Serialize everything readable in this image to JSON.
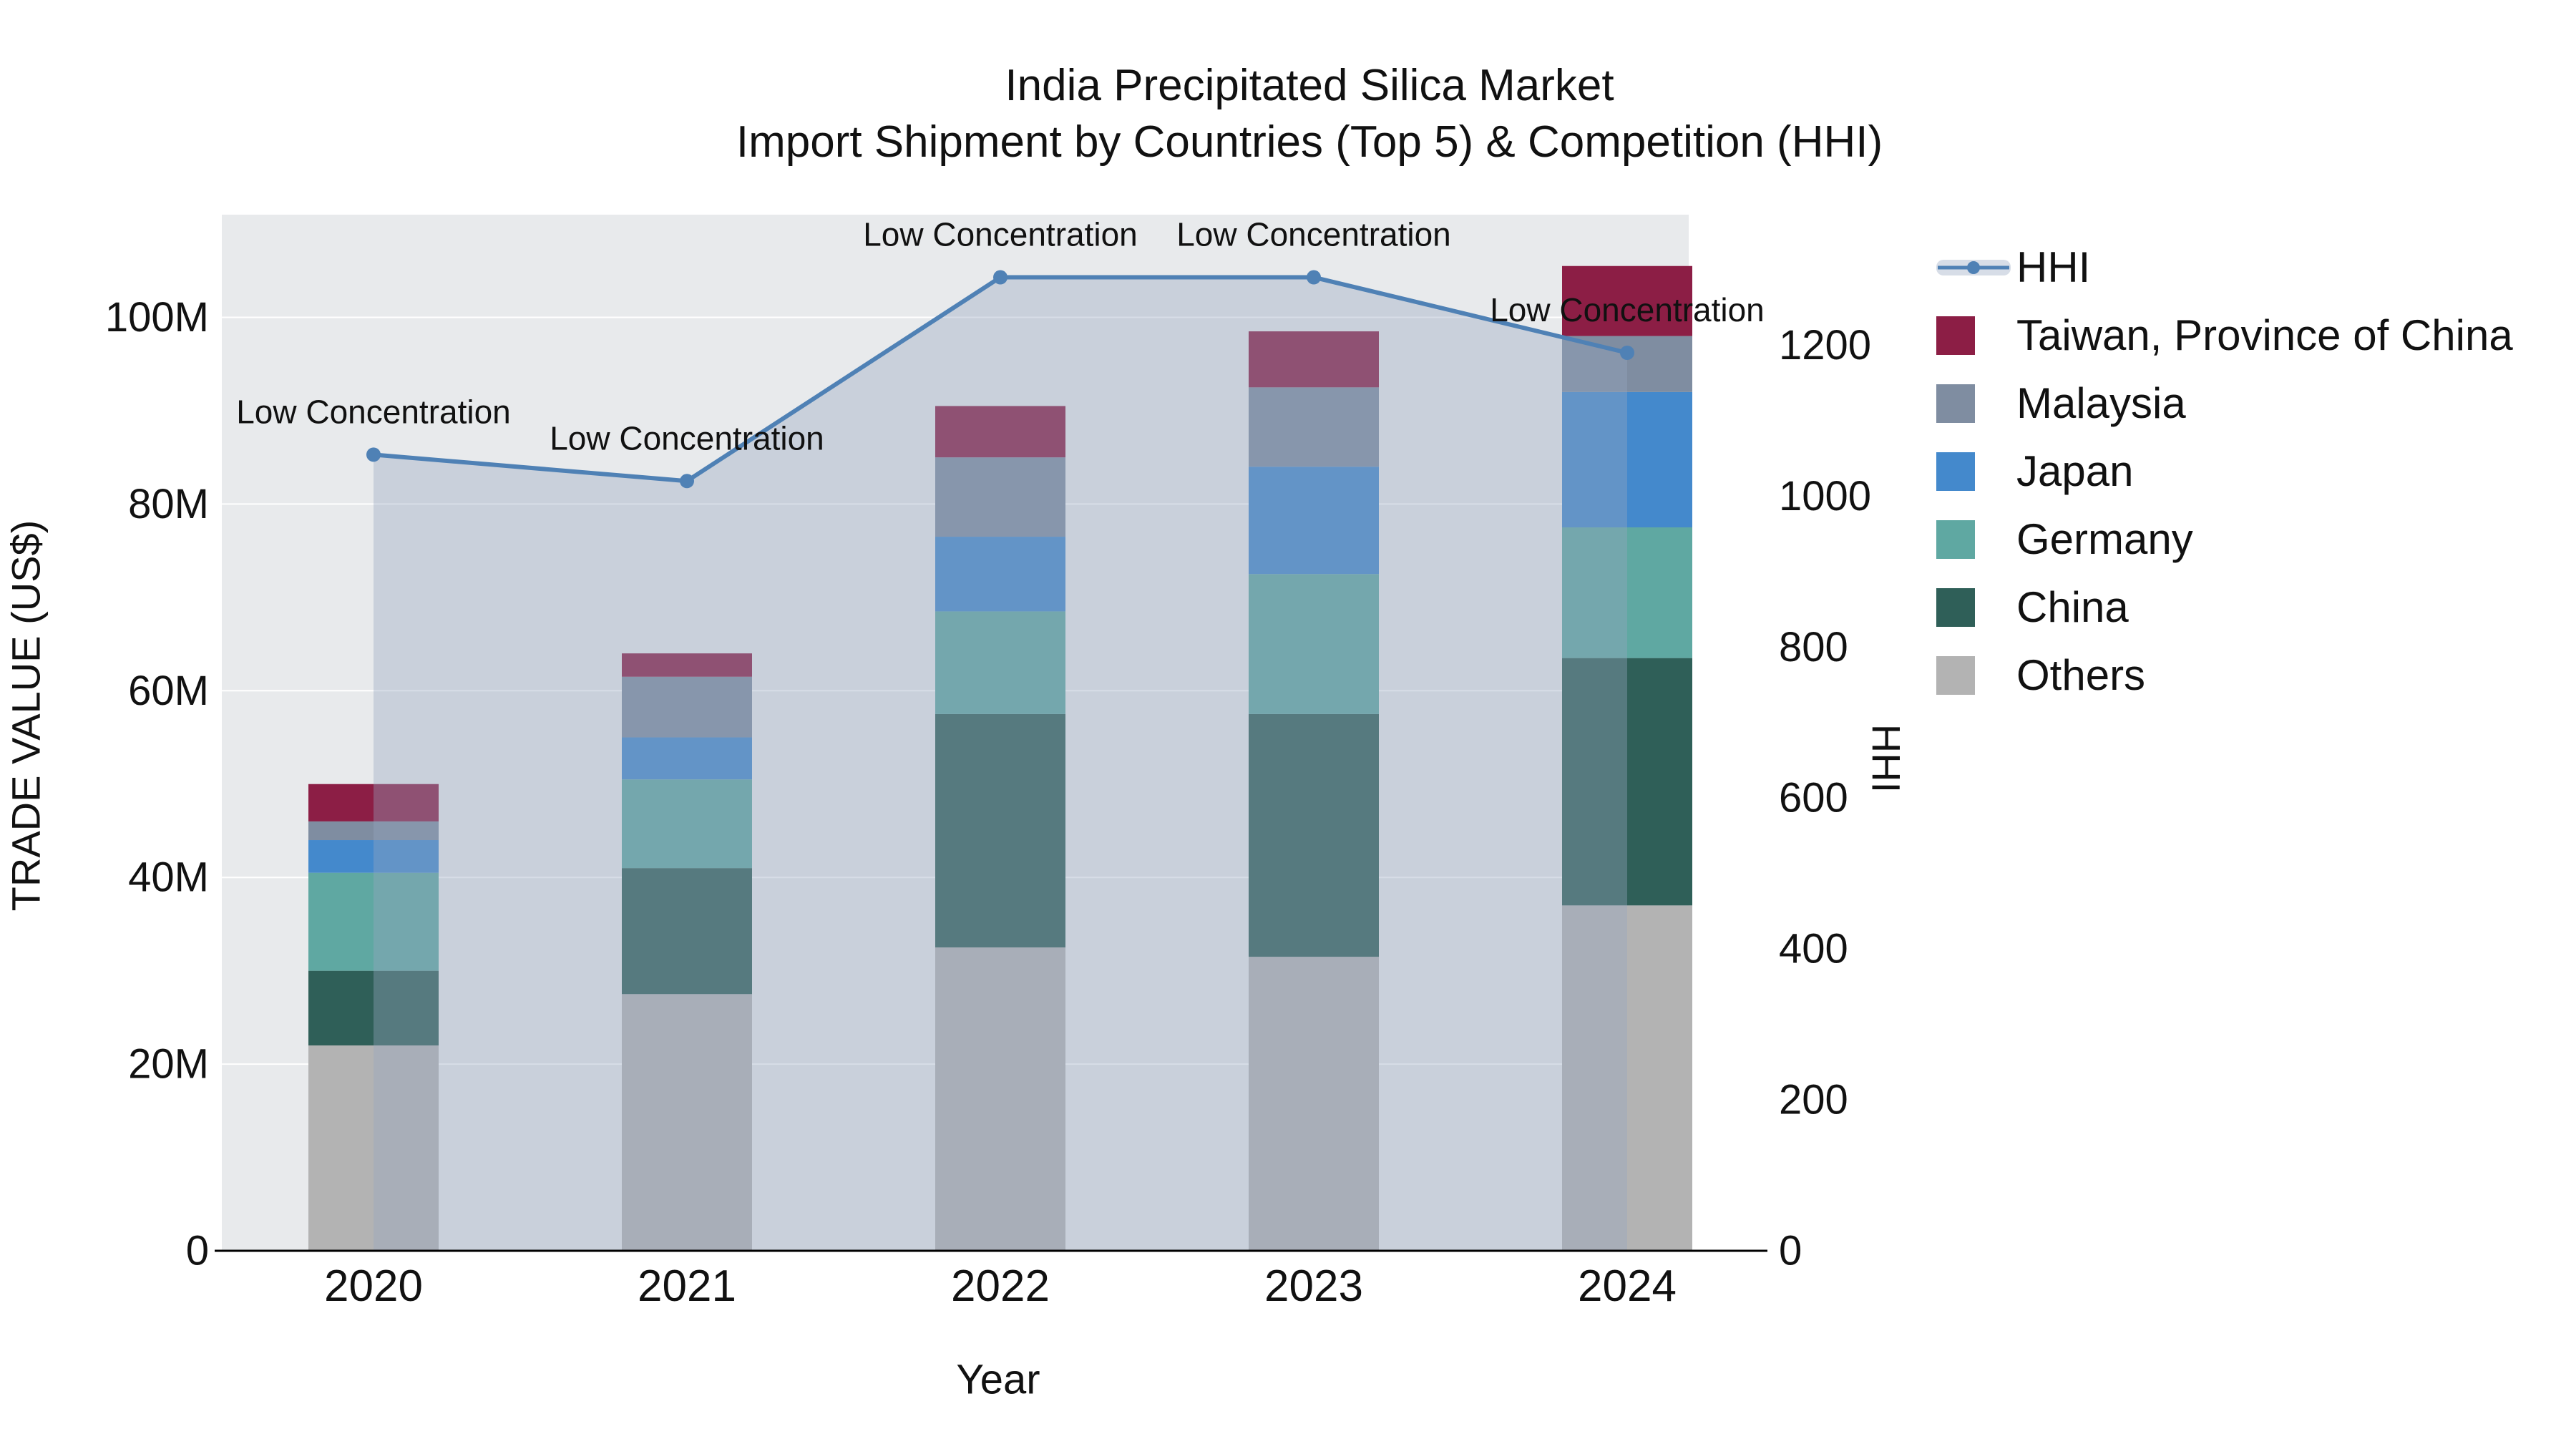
{
  "title": {
    "line1": "India Precipitated Silica Market",
    "line2": "Import Shipment by Countries (Top 5) & Competition (HHI)"
  },
  "axes": {
    "x": {
      "label": "Year",
      "categories": [
        "2020",
        "2021",
        "2022",
        "2023",
        "2024"
      ]
    },
    "y1": {
      "label": "TRADE VALUE (US$)",
      "ticks": [
        0,
        20,
        40,
        60,
        80,
        100
      ],
      "tick_labels": [
        "0",
        "20M",
        "40M",
        "60M",
        "80M",
        "100M"
      ],
      "range": [
        0,
        111
      ]
    },
    "y2": {
      "label": "HHI",
      "ticks": [
        0,
        200,
        400,
        600,
        800,
        1000,
        1200
      ],
      "tick_labels": [
        "0",
        "200",
        "400",
        "600",
        "800",
        "1000",
        "1200"
      ],
      "range": [
        0,
        1373
      ]
    }
  },
  "chart_data": {
    "type": "bar",
    "subtype": "stacked-bar-with-secondary-axis-line",
    "title": "India Precipitated Silica Market — Import Shipment by Countries (Top 5) & Competition (HHI)",
    "xlabel": "Year",
    "ylabel_left": "TRADE VALUE (US$)",
    "ylabel_right": "HHI",
    "categories": [
      "2020",
      "2021",
      "2022",
      "2023",
      "2024"
    ],
    "values_unit": "million US$",
    "series": [
      {
        "name": "Others",
        "color": "#b3b3b3",
        "values": [
          22,
          27.5,
          32.5,
          31.5,
          37
        ]
      },
      {
        "name": "China",
        "color": "#2f5f58",
        "values": [
          8,
          13.5,
          25,
          26,
          26.5
        ]
      },
      {
        "name": "Germany",
        "color": "#5fa8a2",
        "values": [
          10.5,
          9.5,
          11,
          15,
          14
        ]
      },
      {
        "name": "Japan",
        "color": "#4489cc",
        "values": [
          3.5,
          4.5,
          8,
          11.5,
          14.5
        ]
      },
      {
        "name": "Malaysia",
        "color": "#7f8da1",
        "values": [
          2,
          6.5,
          8.5,
          8.5,
          6
        ]
      },
      {
        "name": "Taiwan, Province of China",
        "color": "#8c1e45",
        "values": [
          4,
          2.5,
          5.5,
          6,
          7.5
        ]
      }
    ],
    "totals": [
      50,
      64,
      90.5,
      98.5,
      105.5
    ],
    "line": {
      "name": "HHI",
      "color": "#4f81b5",
      "fill_color": "rgba(150,166,192,0.38)",
      "values": [
        1055,
        1020,
        1290,
        1290,
        1190
      ]
    },
    "annotations": [
      "Low Concentration",
      "Low Concentration",
      "Low Concentration",
      "Low Concentration",
      "Low Concentration"
    ],
    "legend_order": [
      "HHI",
      "Taiwan, Province of China",
      "Malaysia",
      "Japan",
      "Germany",
      "China",
      "Others"
    ],
    "legend_position": "right",
    "grid": true
  },
  "colors": {
    "plot_bg": "#e8eaec",
    "grid": "#ffffff",
    "spine": "#000000",
    "annotation": "#111111",
    "tick_text": "#111111"
  }
}
